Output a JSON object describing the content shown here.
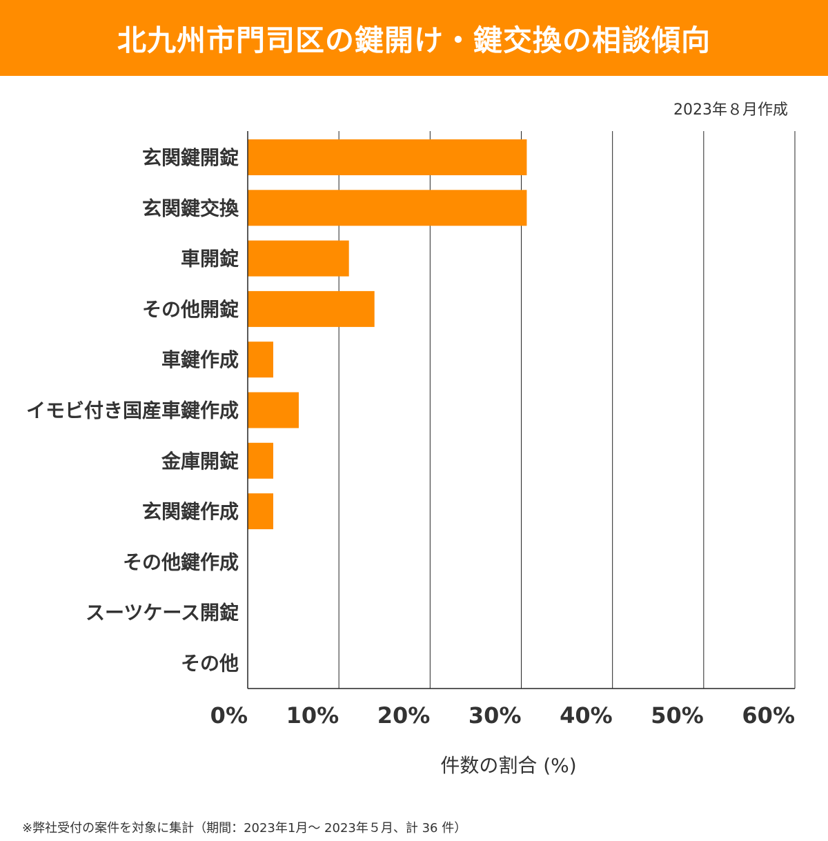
{
  "header": {
    "title": "北九州市門司区の鍵開け・鍵交換の相談傾向"
  },
  "date_note": "2023年８月作成",
  "footnote": "※弊社受付の案件を対象に集計（期間：2023年1月～ 2023年５月、計 36 件）",
  "colors": {
    "accent": "#ff8c00",
    "bar": "#ff8c00",
    "grid": "#222222",
    "text": "#333333"
  },
  "chart_data": {
    "type": "bar",
    "orientation": "horizontal",
    "categories": [
      "玄関鍵開錠",
      "玄関鍵交換",
      "車開錠",
      "その他開錠",
      "車鍵作成",
      "イモビ付き国産車鍵作成",
      "金庫開錠",
      "玄関鍵作成",
      "その他鍵作成",
      "スーツケース開錠",
      "その他"
    ],
    "values": [
      30.6,
      30.6,
      11.1,
      13.9,
      2.8,
      5.6,
      2.8,
      2.8,
      0,
      0,
      0
    ],
    "xlabel": "件数の割合 (%)",
    "xlim": [
      0,
      60
    ],
    "xticks": [
      0,
      10,
      20,
      30,
      40,
      50,
      60
    ],
    "xtick_labels": [
      "0%",
      "10%",
      "20%",
      "30%",
      "40%",
      "50%",
      "60%"
    ],
    "grid": true
  }
}
